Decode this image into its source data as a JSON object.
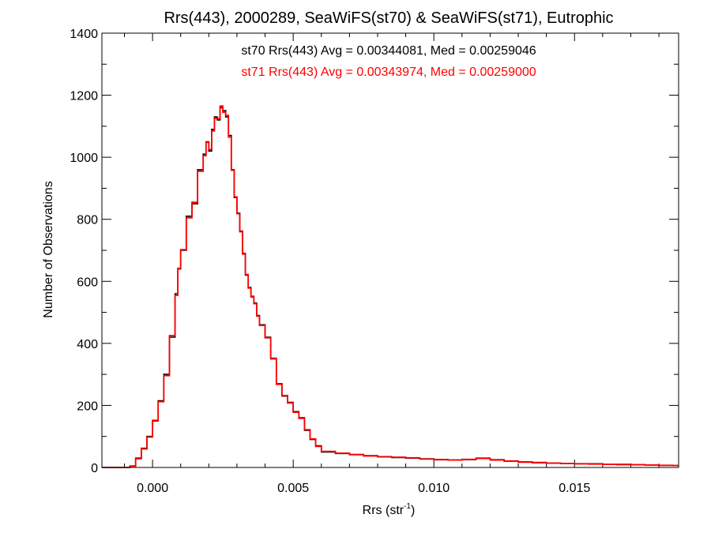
{
  "chart_data": {
    "type": "line",
    "title": "Rrs(443), 2000289, SeaWiFS(st70) & SeaWiFS(st71), Eutrophic",
    "xlabel_base": "Rrs (str",
    "xlabel_sup": "-1",
    "xlabel_close": ")",
    "ylabel": "Number of Observations",
    "xlim": [
      -0.0018,
      0.0187
    ],
    "ylim": [
      0,
      1400
    ],
    "xticks": [
      0.0,
      0.005,
      0.01,
      0.015
    ],
    "xtick_labels": [
      "0.000",
      "0.005",
      "0.010",
      "0.015"
    ],
    "xminor": 0.001,
    "yticks": [
      0,
      200,
      400,
      600,
      800,
      1000,
      1200,
      1400
    ],
    "ytick_labels": [
      "0",
      "200",
      "400",
      "600",
      "800",
      "1000",
      "1200",
      "1400"
    ],
    "yminor": 100,
    "grid": false,
    "annotations": [
      {
        "text": "st70 Rrs(443) Avg = 0.00344081, Med = 0.00259046",
        "color": "#000000"
      },
      {
        "text": "st71 Rrs(443) Avg = 0.00343974, Med = 0.00259000",
        "color": "#ff0000"
      }
    ],
    "series": [
      {
        "color": "#000000",
        "style": "step",
        "x": [
          -0.0018,
          -0.0008,
          -0.0006,
          -0.0004,
          -0.0002,
          0.0,
          0.0002,
          0.0004,
          0.0006,
          0.0008,
          0.0009,
          0.001,
          0.0012,
          0.0014,
          0.0016,
          0.0018,
          0.0019,
          0.002,
          0.0021,
          0.0022,
          0.0023,
          0.0024,
          0.0025,
          0.0026,
          0.0027,
          0.0028,
          0.0029,
          0.003,
          0.0031,
          0.0032,
          0.0033,
          0.0034,
          0.0035,
          0.0036,
          0.0037,
          0.0038,
          0.004,
          0.0042,
          0.0044,
          0.0046,
          0.0048,
          0.005,
          0.0052,
          0.0054,
          0.0056,
          0.0058,
          0.006,
          0.0065,
          0.007,
          0.0075,
          0.008,
          0.0085,
          0.009,
          0.0095,
          0.01,
          0.0105,
          0.011,
          0.0115,
          0.012,
          0.0125,
          0.013,
          0.0135,
          0.014,
          0.0145,
          0.015,
          0.0155,
          0.016,
          0.0165,
          0.017,
          0.0175,
          0.018,
          0.0185
        ],
        "y": [
          0,
          5,
          30,
          60,
          100,
          150,
          215,
          300,
          420,
          560,
          640,
          700,
          810,
          850,
          960,
          1010,
          1050,
          1020,
          1090,
          1130,
          1120,
          1160,
          1150,
          1130,
          1070,
          960,
          870,
          820,
          760,
          690,
          620,
          580,
          550,
          530,
          490,
          460,
          420,
          350,
          270,
          230,
          210,
          180,
          160,
          120,
          90,
          70,
          50,
          45,
          42,
          38,
          35,
          32,
          30,
          28,
          26,
          24,
          25,
          30,
          25,
          20,
          18,
          15,
          14,
          13,
          12,
          12,
          10,
          10,
          9,
          8,
          7,
          6
        ]
      },
      {
        "color": "#ff0000",
        "style": "step",
        "x": [
          -0.0018,
          -0.0008,
          -0.0006,
          -0.0004,
          -0.0002,
          0.0,
          0.0002,
          0.0004,
          0.0006,
          0.0008,
          0.0009,
          0.001,
          0.0012,
          0.0014,
          0.0016,
          0.0018,
          0.0019,
          0.002,
          0.0021,
          0.0022,
          0.0023,
          0.0024,
          0.0025,
          0.0026,
          0.0027,
          0.0028,
          0.0029,
          0.003,
          0.0031,
          0.0032,
          0.0033,
          0.0034,
          0.0035,
          0.0036,
          0.0037,
          0.0038,
          0.004,
          0.0042,
          0.0044,
          0.0046,
          0.0048,
          0.005,
          0.0052,
          0.0054,
          0.0056,
          0.0058,
          0.006,
          0.0065,
          0.007,
          0.0075,
          0.008,
          0.0085,
          0.009,
          0.0095,
          0.01,
          0.0105,
          0.011,
          0.0115,
          0.012,
          0.0125,
          0.013,
          0.0135,
          0.014,
          0.0145,
          0.015,
          0.0155,
          0.016,
          0.0165,
          0.017,
          0.0175,
          0.018,
          0.0185
        ],
        "y": [
          0,
          4,
          28,
          62,
          98,
          152,
          212,
          296,
          425,
          555,
          642,
          702,
          805,
          855,
          955,
          1005,
          1048,
          1025,
          1085,
          1125,
          1125,
          1165,
          1145,
          1135,
          1065,
          958,
          872,
          818,
          762,
          688,
          622,
          578,
          552,
          528,
          488,
          458,
          418,
          352,
          268,
          232,
          208,
          178,
          158,
          122,
          92,
          68,
          52,
          46,
          41,
          37,
          34,
          33,
          31,
          27,
          25,
          24,
          26,
          29,
          24,
          21,
          17,
          16,
          14,
          13,
          12,
          11,
          10,
          9,
          9,
          8,
          7,
          6
        ]
      }
    ]
  }
}
